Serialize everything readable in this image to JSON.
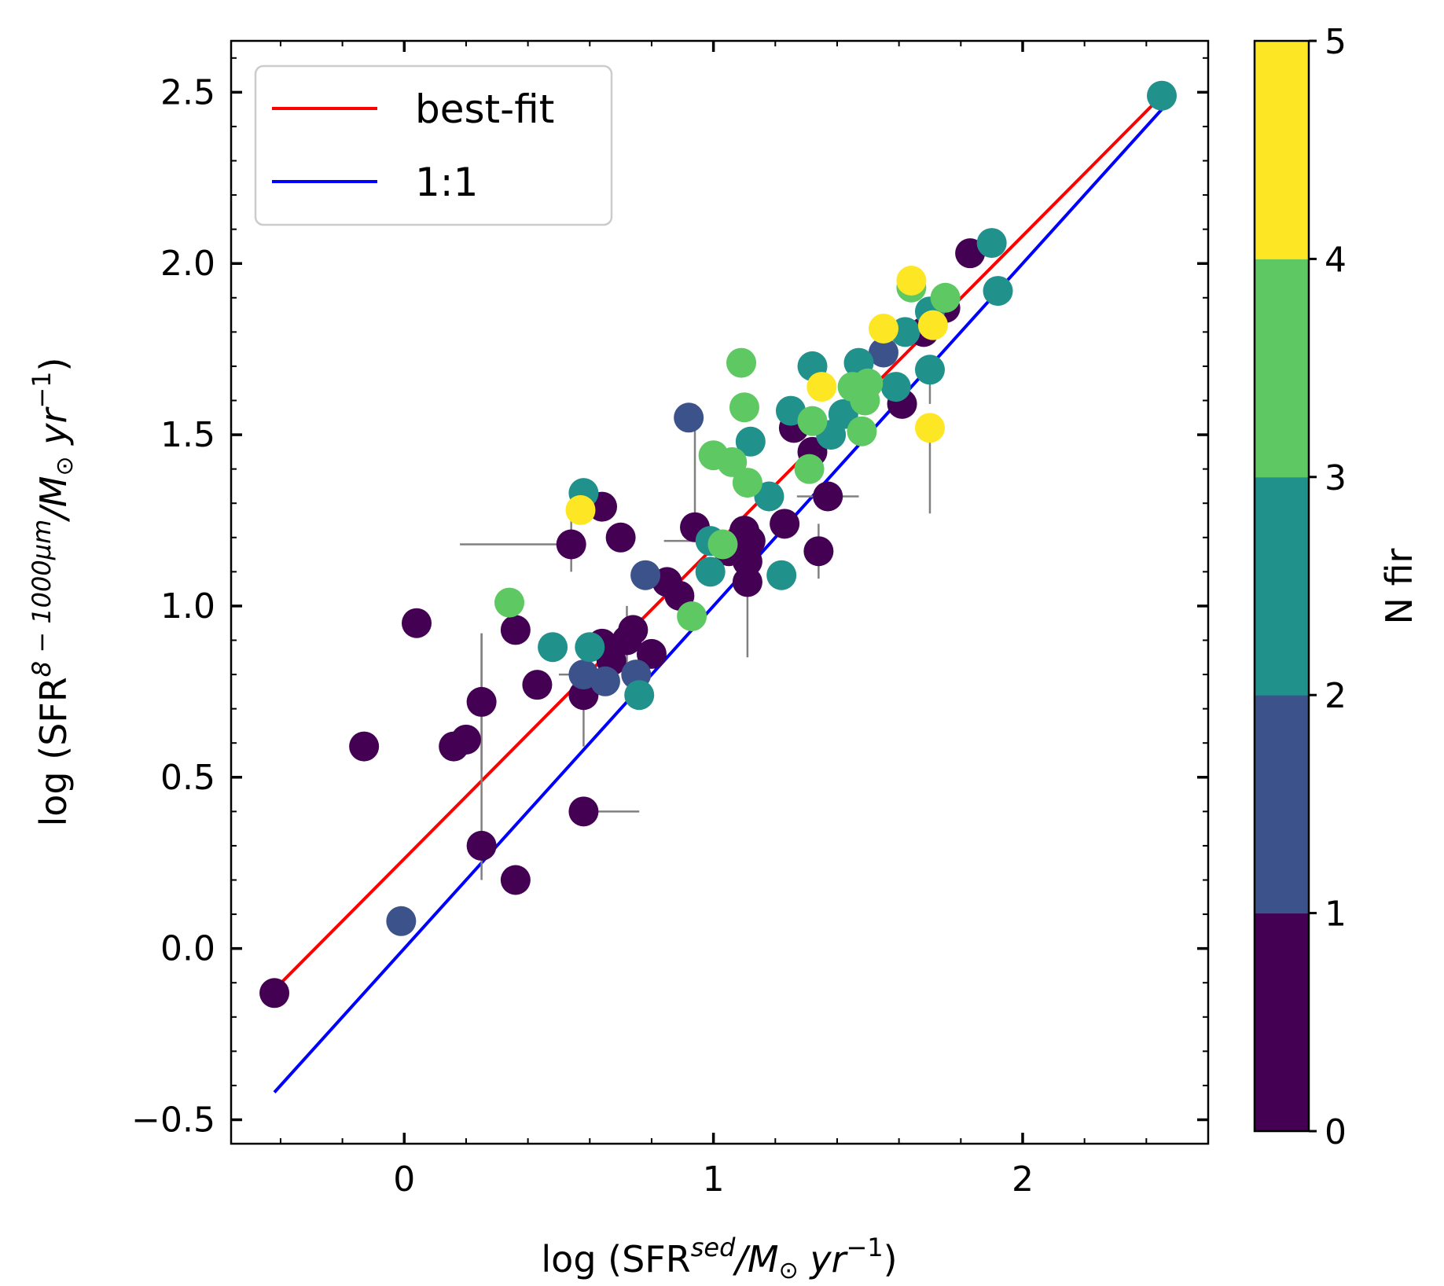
{
  "chart_data": {
    "type": "scatter",
    "xlabel": {
      "prefix": "log (SFR",
      "sup": "sed",
      "suffix": "/M",
      "sun": "⊙",
      "yr": "yr",
      "exp": "−1",
      "close": ")"
    },
    "ylabel": {
      "prefix": "log (SFR",
      "sup": "8 − 1000μm",
      "suffix": "/M",
      "sun": "⊙",
      "yr": "yr",
      "exp": "−1",
      "close": ")"
    },
    "xlim": [
      -0.56,
      2.6
    ],
    "ylim": [
      -0.57,
      2.65
    ],
    "xticks": [
      0,
      1,
      2
    ],
    "xtick_labels": [
      "0",
      "1",
      "2"
    ],
    "yticks": [
      -0.5,
      0.0,
      0.5,
      1.0,
      1.5,
      2.0,
      2.5
    ],
    "ytick_labels": [
      "−0.5",
      "0.0",
      "0.5",
      "1.0",
      "1.5",
      "2.0",
      "2.5"
    ],
    "legend": [
      {
        "label": "best-fit",
        "color": "#ff0000"
      },
      {
        "label": "1:1",
        "color": "#0000ff"
      }
    ],
    "legend_position": "top-left",
    "lines": [
      {
        "name": "best-fit",
        "color": "#ff0000",
        "x": [
          -0.42,
          2.45
        ],
        "y": [
          -0.12,
          2.49
        ]
      },
      {
        "name": "1:1",
        "color": "#0000ff",
        "x": [
          -0.42,
          2.45
        ],
        "y": [
          -0.42,
          2.45
        ]
      }
    ],
    "colorbar": {
      "label": "N fir",
      "ticks": [
        0,
        1,
        2,
        3,
        4,
        5
      ],
      "tick_labels": [
        "0",
        "1",
        "2",
        "3",
        "4",
        "5"
      ],
      "colors": [
        "#440154",
        "#3b528b",
        "#21918c",
        "#5ec962",
        "#fde725"
      ]
    },
    "error_color": "#808080",
    "points": [
      {
        "x": -0.42,
        "y": -0.13,
        "n": 0
      },
      {
        "x": -0.13,
        "y": 0.59,
        "n": 0
      },
      {
        "x": 0.04,
        "y": 0.95,
        "n": 0
      },
      {
        "x": 0.16,
        "y": 0.59,
        "n": 0
      },
      {
        "x": 0.2,
        "y": 0.61,
        "n": 0
      },
      {
        "x": 0.25,
        "y": 0.72,
        "n": 0,
        "yerr": 0.2
      },
      {
        "x": 0.25,
        "y": 0.3,
        "n": 0,
        "yerr": [
          0.1,
          0.62
        ]
      },
      {
        "x": 0.36,
        "y": 0.2,
        "n": 0
      },
      {
        "x": 0.36,
        "y": 0.93,
        "n": 0
      },
      {
        "x": 0.43,
        "y": 0.77,
        "n": 0
      },
      {
        "x": 0.54,
        "y": 1.18,
        "n": 0,
        "xerr": [
          0.36,
          0.0
        ],
        "yerr": 0.08
      },
      {
        "x": 0.58,
        "y": 0.74,
        "n": 0,
        "yerr": 0.15
      },
      {
        "x": 0.58,
        "y": 0.4,
        "n": 0,
        "xerr": [
          0.0,
          0.18
        ]
      },
      {
        "x": 0.64,
        "y": 1.29,
        "n": 0
      },
      {
        "x": 0.64,
        "y": 0.89,
        "n": 0
      },
      {
        "x": 0.67,
        "y": 0.84,
        "n": 0
      },
      {
        "x": 0.7,
        "y": 1.2,
        "n": 0
      },
      {
        "x": 0.72,
        "y": 0.9,
        "n": 0,
        "yerr": 0.1
      },
      {
        "x": 0.74,
        "y": 0.93,
        "n": 0
      },
      {
        "x": 0.8,
        "y": 0.86,
        "n": 0
      },
      {
        "x": 0.85,
        "y": 1.07,
        "n": 0,
        "xerr": 0.05
      },
      {
        "x": 0.89,
        "y": 1.03,
        "n": 0
      },
      {
        "x": 0.94,
        "y": 1.23,
        "n": 0,
        "yerr": [
          0.0,
          0.36
        ]
      },
      {
        "x": 1.05,
        "y": 1.16,
        "n": 0
      },
      {
        "x": 1.1,
        "y": 1.22,
        "n": 0
      },
      {
        "x": 1.12,
        "y": 1.19,
        "n": 0
      },
      {
        "x": 1.11,
        "y": 1.07,
        "n": 0,
        "yerr": [
          0.22,
          0.08
        ]
      },
      {
        "x": 1.11,
        "y": 1.13,
        "n": 0,
        "yerr": 0.1
      },
      {
        "x": 1.23,
        "y": 1.24,
        "n": 0
      },
      {
        "x": 1.26,
        "y": 1.52,
        "n": 0
      },
      {
        "x": 1.32,
        "y": 1.45,
        "n": 0
      },
      {
        "x": 1.34,
        "y": 1.16,
        "n": 0,
        "yerr": 0.08
      },
      {
        "x": 1.37,
        "y": 1.32,
        "n": 0,
        "xerr": 0.1
      },
      {
        "x": 1.61,
        "y": 1.59,
        "n": 0
      },
      {
        "x": 1.68,
        "y": 1.8,
        "n": 0
      },
      {
        "x": 1.75,
        "y": 1.87,
        "n": 0
      },
      {
        "x": 1.83,
        "y": 2.03,
        "n": 0
      },
      {
        "x": -0.01,
        "y": 0.08,
        "n": 1
      },
      {
        "x": 0.58,
        "y": 0.8,
        "n": 1,
        "xerr": 0.08
      },
      {
        "x": 0.65,
        "y": 0.78,
        "n": 1
      },
      {
        "x": 0.75,
        "y": 0.8,
        "n": 1
      },
      {
        "x": 0.78,
        "y": 1.09,
        "n": 1
      },
      {
        "x": 0.92,
        "y": 1.55,
        "n": 1
      },
      {
        "x": 1.55,
        "y": 1.74,
        "n": 1
      },
      {
        "x": 0.48,
        "y": 0.88,
        "n": 2
      },
      {
        "x": 0.58,
        "y": 1.33,
        "n": 2
      },
      {
        "x": 0.6,
        "y": 0.88,
        "n": 2
      },
      {
        "x": 0.76,
        "y": 0.74,
        "n": 2
      },
      {
        "x": 0.99,
        "y": 1.19,
        "n": 2,
        "xerr": 0.15
      },
      {
        "x": 0.99,
        "y": 1.1,
        "n": 2
      },
      {
        "x": 1.12,
        "y": 1.48,
        "n": 2
      },
      {
        "x": 1.18,
        "y": 1.32,
        "n": 2
      },
      {
        "x": 1.22,
        "y": 1.09,
        "n": 2
      },
      {
        "x": 1.25,
        "y": 1.57,
        "n": 2
      },
      {
        "x": 1.32,
        "y": 1.7,
        "n": 2
      },
      {
        "x": 1.38,
        "y": 1.5,
        "n": 2
      },
      {
        "x": 1.42,
        "y": 1.56,
        "n": 2
      },
      {
        "x": 1.47,
        "y": 1.71,
        "n": 2
      },
      {
        "x": 1.59,
        "y": 1.64,
        "n": 2
      },
      {
        "x": 1.62,
        "y": 1.8,
        "n": 2
      },
      {
        "x": 1.7,
        "y": 1.69,
        "n": 2,
        "yerr": [
          0.1,
          0.0
        ]
      },
      {
        "x": 1.7,
        "y": 1.86,
        "n": 2
      },
      {
        "x": 1.9,
        "y": 2.06,
        "n": 2
      },
      {
        "x": 1.92,
        "y": 1.92,
        "n": 2
      },
      {
        "x": 2.45,
        "y": 2.49,
        "n": 2
      },
      {
        "x": 0.34,
        "y": 1.01,
        "n": 3
      },
      {
        "x": 0.93,
        "y": 0.97,
        "n": 3
      },
      {
        "x": 1.0,
        "y": 1.44,
        "n": 3
      },
      {
        "x": 1.03,
        "y": 1.18,
        "n": 3
      },
      {
        "x": 1.06,
        "y": 1.42,
        "n": 3
      },
      {
        "x": 1.09,
        "y": 1.71,
        "n": 3
      },
      {
        "x": 1.1,
        "y": 1.58,
        "n": 3
      },
      {
        "x": 1.11,
        "y": 1.36,
        "n": 3
      },
      {
        "x": 1.31,
        "y": 1.4,
        "n": 3
      },
      {
        "x": 1.32,
        "y": 1.54,
        "n": 3
      },
      {
        "x": 1.45,
        "y": 1.64,
        "n": 3
      },
      {
        "x": 1.48,
        "y": 1.51,
        "n": 3
      },
      {
        "x": 1.49,
        "y": 1.6,
        "n": 3
      },
      {
        "x": 1.5,
        "y": 1.65,
        "n": 3
      },
      {
        "x": 1.64,
        "y": 1.93,
        "n": 3
      },
      {
        "x": 1.75,
        "y": 1.9,
        "n": 3
      },
      {
        "x": 0.57,
        "y": 1.28,
        "n": 4
      },
      {
        "x": 1.35,
        "y": 1.64,
        "n": 4
      },
      {
        "x": 1.55,
        "y": 1.81,
        "n": 4
      },
      {
        "x": 1.64,
        "y": 1.95,
        "n": 4
      },
      {
        "x": 1.7,
        "y": 1.52,
        "n": 4,
        "yerr": [
          0.25,
          0.0
        ]
      },
      {
        "x": 1.71,
        "y": 1.82,
        "n": 4
      }
    ]
  }
}
